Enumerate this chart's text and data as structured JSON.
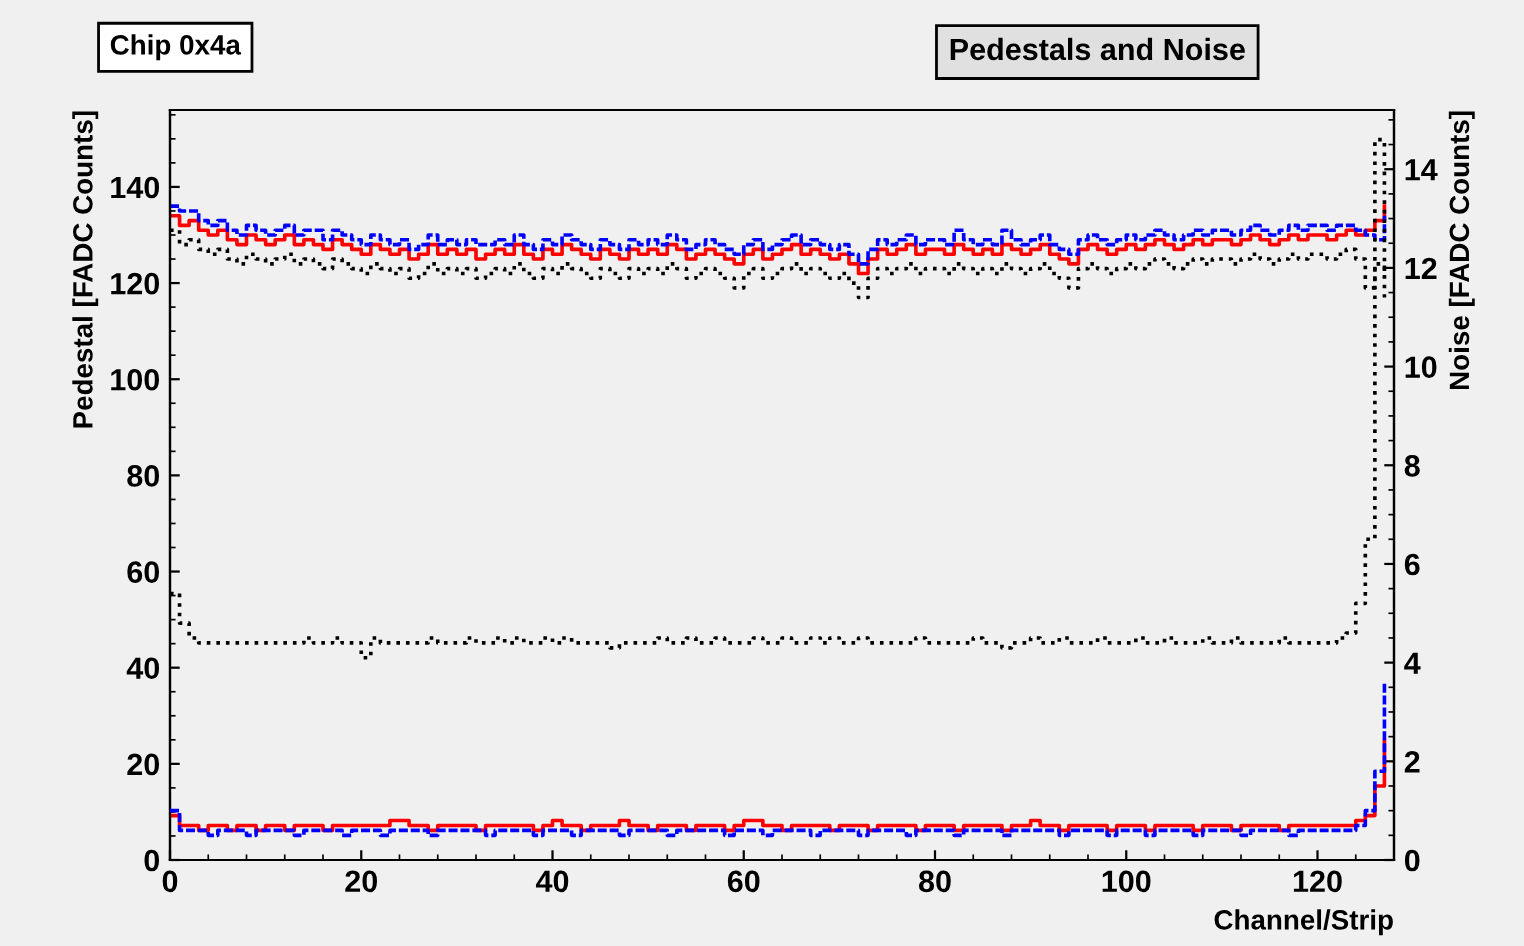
{
  "chart_data": {
    "type": "step",
    "title": "Pedestals and Noise",
    "subtitle": "Chip 0x4a",
    "xlabel": "Channel/Strip",
    "ylabel": "Pedestal [FADC Counts]",
    "y2label": "Noise [FADC Counts]",
    "x": [
      0,
      1,
      2,
      3,
      4,
      5,
      6,
      7,
      8,
      9,
      10,
      11,
      12,
      13,
      14,
      15,
      16,
      17,
      18,
      19,
      20,
      21,
      22,
      23,
      24,
      25,
      26,
      27,
      28,
      29,
      30,
      31,
      32,
      33,
      34,
      35,
      36,
      37,
      38,
      39,
      40,
      41,
      42,
      43,
      44,
      45,
      46,
      47,
      48,
      49,
      50,
      51,
      52,
      53,
      54,
      55,
      56,
      57,
      58,
      59,
      60,
      61,
      62,
      63,
      64,
      65,
      66,
      67,
      68,
      69,
      70,
      71,
      72,
      73,
      74,
      75,
      76,
      77,
      78,
      79,
      80,
      81,
      82,
      83,
      84,
      85,
      86,
      87,
      88,
      89,
      90,
      91,
      92,
      93,
      94,
      95,
      96,
      97,
      98,
      99,
      100,
      101,
      102,
      103,
      104,
      105,
      106,
      107,
      108,
      109,
      110,
      111,
      112,
      113,
      114,
      115,
      116,
      117,
      118,
      119,
      120,
      121,
      122,
      123,
      124,
      125,
      126,
      127
    ],
    "series": [
      {
        "color": "#0000ff",
        "line_style": "dashed",
        "values": [
          136,
          135,
          135,
          133,
          132,
          133,
          131,
          130,
          132,
          131,
          130,
          131,
          132,
          130,
          131,
          131,
          129,
          131,
          130,
          129,
          128,
          130,
          129,
          128,
          129,
          127,
          128,
          130,
          128,
          129,
          128,
          129,
          128,
          128,
          129,
          128,
          130,
          128,
          127,
          129,
          128,
          130,
          129,
          128,
          127,
          129,
          128,
          127,
          129,
          128,
          129,
          128,
          130,
          129,
          127,
          128,
          129,
          128,
          127,
          126,
          128,
          129,
          127,
          128,
          129,
          130,
          128,
          129,
          128,
          127,
          128,
          126,
          124,
          127,
          129,
          128,
          129,
          130,
          128,
          129,
          129,
          128,
          131,
          129,
          128,
          129,
          128,
          131,
          129,
          128,
          129,
          130,
          128,
          127,
          126,
          129,
          130,
          129,
          128,
          129,
          130,
          129,
          130,
          131,
          130,
          129,
          130,
          131,
          130,
          131,
          131,
          130,
          131,
          132,
          131,
          130,
          131,
          132,
          131,
          132,
          132,
          131,
          132,
          132,
          131,
          130,
          129,
          134
        ]
      },
      {
        "color": "#ff0000",
        "line_style": "solid",
        "values": [
          134,
          132,
          133,
          131,
          130,
          131,
          129,
          128,
          130,
          129,
          128,
          129,
          130,
          128,
          129,
          128,
          127,
          129,
          128,
          127,
          126,
          128,
          127,
          126,
          127,
          125,
          126,
          128,
          126,
          127,
          126,
          127,
          125,
          126,
          127,
          126,
          128,
          126,
          125,
          127,
          126,
          128,
          127,
          126,
          125,
          127,
          126,
          125,
          127,
          126,
          127,
          126,
          128,
          127,
          125,
          126,
          127,
          126,
          125,
          124,
          126,
          127,
          125,
          126,
          127,
          128,
          126,
          127,
          126,
          125,
          126,
          124,
          122,
          125,
          127,
          126,
          127,
          128,
          126,
          127,
          127,
          126,
          128,
          127,
          126,
          127,
          126,
          128,
          127,
          126,
          127,
          128,
          126,
          125,
          124,
          127,
          128,
          127,
          126,
          127,
          128,
          127,
          128,
          129,
          128,
          127,
          128,
          129,
          128,
          129,
          129,
          128,
          129,
          130,
          129,
          128,
          129,
          130,
          129,
          130,
          130,
          129,
          130,
          131,
          130,
          131,
          133,
          136
        ]
      },
      {
        "color": "#000000",
        "line_style": "dotted",
        "values": [
          131,
          128,
          129,
          127,
          126,
          127,
          125,
          124,
          126,
          125,
          124,
          125,
          126,
          124,
          125,
          124,
          123,
          125,
          124,
          123,
          122,
          124,
          123,
          122,
          123,
          121,
          122,
          124,
          122,
          123,
          122,
          123,
          121,
          122,
          123,
          122,
          124,
          122,
          121,
          123,
          122,
          124,
          123,
          122,
          121,
          123,
          122,
          121,
          123,
          122,
          123,
          122,
          124,
          123,
          121,
          122,
          123,
          122,
          121,
          119,
          122,
          123,
          121,
          122,
          123,
          124,
          122,
          123,
          122,
          121,
          122,
          120,
          117,
          121,
          123,
          122,
          123,
          124,
          122,
          123,
          123,
          122,
          124,
          123,
          122,
          123,
          122,
          124,
          123,
          122,
          123,
          124,
          122,
          121,
          119,
          123,
          124,
          123,
          122,
          123,
          124,
          123,
          124,
          125,
          124,
          123,
          124,
          125,
          124,
          125,
          125,
          124,
          125,
          126,
          125,
          124,
          125,
          126,
          125,
          126,
          126,
          125,
          126,
          127,
          125,
          119,
          124,
          117
        ]
      },
      {
        "color": "#0000ff",
        "line_style": "dashed",
        "axis": "y2",
        "values": [
          1.0,
          0.6,
          0.6,
          0.6,
          0.5,
          0.6,
          0.6,
          0.6,
          0.5,
          0.6,
          0.6,
          0.6,
          0.6,
          0.5,
          0.6,
          0.6,
          0.6,
          0.6,
          0.5,
          0.6,
          0.6,
          0.6,
          0.5,
          0.6,
          0.6,
          0.6,
          0.6,
          0.5,
          0.6,
          0.6,
          0.6,
          0.6,
          0.6,
          0.5,
          0.6,
          0.6,
          0.6,
          0.6,
          0.5,
          0.6,
          0.6,
          0.6,
          0.5,
          0.6,
          0.6,
          0.6,
          0.6,
          0.5,
          0.6,
          0.6,
          0.6,
          0.6,
          0.5,
          0.6,
          0.6,
          0.6,
          0.6,
          0.6,
          0.5,
          0.6,
          0.6,
          0.6,
          0.5,
          0.6,
          0.6,
          0.6,
          0.6,
          0.5,
          0.6,
          0.6,
          0.6,
          0.6,
          0.5,
          0.6,
          0.6,
          0.6,
          0.6,
          0.5,
          0.6,
          0.6,
          0.6,
          0.6,
          0.5,
          0.6,
          0.6,
          0.6,
          0.6,
          0.5,
          0.6,
          0.6,
          0.6,
          0.6,
          0.6,
          0.5,
          0.6,
          0.6,
          0.6,
          0.6,
          0.5,
          0.6,
          0.6,
          0.6,
          0.5,
          0.6,
          0.6,
          0.6,
          0.6,
          0.5,
          0.6,
          0.6,
          0.6,
          0.6,
          0.5,
          0.6,
          0.6,
          0.6,
          0.6,
          0.5,
          0.6,
          0.6,
          0.6,
          0.6,
          0.6,
          0.6,
          0.7,
          1.0,
          1.8,
          3.6
        ]
      },
      {
        "color": "#ff0000",
        "line_style": "solid",
        "axis": "y2",
        "values": [
          0.9,
          0.7,
          0.7,
          0.6,
          0.7,
          0.7,
          0.6,
          0.7,
          0.7,
          0.6,
          0.7,
          0.7,
          0.6,
          0.7,
          0.7,
          0.7,
          0.6,
          0.7,
          0.7,
          0.7,
          0.7,
          0.7,
          0.7,
          0.8,
          0.8,
          0.7,
          0.7,
          0.6,
          0.7,
          0.7,
          0.7,
          0.7,
          0.6,
          0.7,
          0.7,
          0.7,
          0.7,
          0.7,
          0.6,
          0.7,
          0.8,
          0.7,
          0.7,
          0.6,
          0.7,
          0.7,
          0.7,
          0.8,
          0.7,
          0.7,
          0.6,
          0.7,
          0.7,
          0.7,
          0.6,
          0.7,
          0.7,
          0.7,
          0.6,
          0.7,
          0.8,
          0.8,
          0.7,
          0.7,
          0.6,
          0.7,
          0.7,
          0.7,
          0.7,
          0.6,
          0.7,
          0.7,
          0.7,
          0.6,
          0.7,
          0.7,
          0.7,
          0.7,
          0.6,
          0.7,
          0.7,
          0.7,
          0.6,
          0.7,
          0.7,
          0.7,
          0.7,
          0.6,
          0.7,
          0.7,
          0.8,
          0.7,
          0.7,
          0.6,
          0.7,
          0.7,
          0.7,
          0.7,
          0.6,
          0.7,
          0.7,
          0.7,
          0.6,
          0.7,
          0.7,
          0.7,
          0.7,
          0.6,
          0.7,
          0.7,
          0.7,
          0.6,
          0.7,
          0.7,
          0.7,
          0.7,
          0.6,
          0.7,
          0.7,
          0.7,
          0.7,
          0.7,
          0.7,
          0.7,
          0.8,
          0.9,
          1.5,
          2.4
        ]
      },
      {
        "color": "#000000",
        "line_style": "dotted",
        "axis": "y2",
        "values": [
          5.4,
          4.8,
          4.5,
          4.4,
          4.4,
          4.4,
          4.4,
          4.4,
          4.4,
          4.4,
          4.4,
          4.4,
          4.4,
          4.4,
          4.5,
          4.4,
          4.4,
          4.5,
          4.4,
          4.4,
          4.1,
          4.5,
          4.4,
          4.4,
          4.4,
          4.4,
          4.4,
          4.5,
          4.4,
          4.4,
          4.4,
          4.5,
          4.4,
          4.4,
          4.5,
          4.4,
          4.5,
          4.4,
          4.4,
          4.5,
          4.4,
          4.5,
          4.4,
          4.4,
          4.4,
          4.4,
          4.3,
          4.4,
          4.4,
          4.4,
          4.4,
          4.5,
          4.4,
          4.4,
          4.5,
          4.4,
          4.4,
          4.5,
          4.4,
          4.4,
          4.4,
          4.5,
          4.4,
          4.4,
          4.5,
          4.4,
          4.4,
          4.5,
          4.4,
          4.5,
          4.4,
          4.4,
          4.5,
          4.4,
          4.4,
          4.4,
          4.4,
          4.4,
          4.5,
          4.4,
          4.4,
          4.4,
          4.4,
          4.4,
          4.5,
          4.4,
          4.4,
          4.3,
          4.4,
          4.4,
          4.5,
          4.4,
          4.4,
          4.5,
          4.4,
          4.4,
          4.4,
          4.5,
          4.4,
          4.4,
          4.4,
          4.5,
          4.4,
          4.4,
          4.5,
          4.4,
          4.4,
          4.4,
          4.5,
          4.4,
          4.4,
          4.5,
          4.4,
          4.4,
          4.4,
          4.4,
          4.5,
          4.4,
          4.4,
          4.4,
          4.4,
          4.4,
          4.5,
          4.6,
          5.2,
          6.5,
          14.6,
          11.8
        ]
      }
    ],
    "xlim": [
      0,
      128
    ],
    "xticks": [
      0,
      20,
      40,
      60,
      80,
      100,
      120
    ],
    "ylim": [
      0,
      156
    ],
    "yticks": [
      0,
      20,
      40,
      60,
      80,
      100,
      120,
      140
    ],
    "y2lim": [
      0,
      15.2
    ],
    "y2ticks": [
      0,
      2,
      4,
      6,
      8,
      10,
      12,
      14
    ],
    "grid": false,
    "legend": false
  }
}
